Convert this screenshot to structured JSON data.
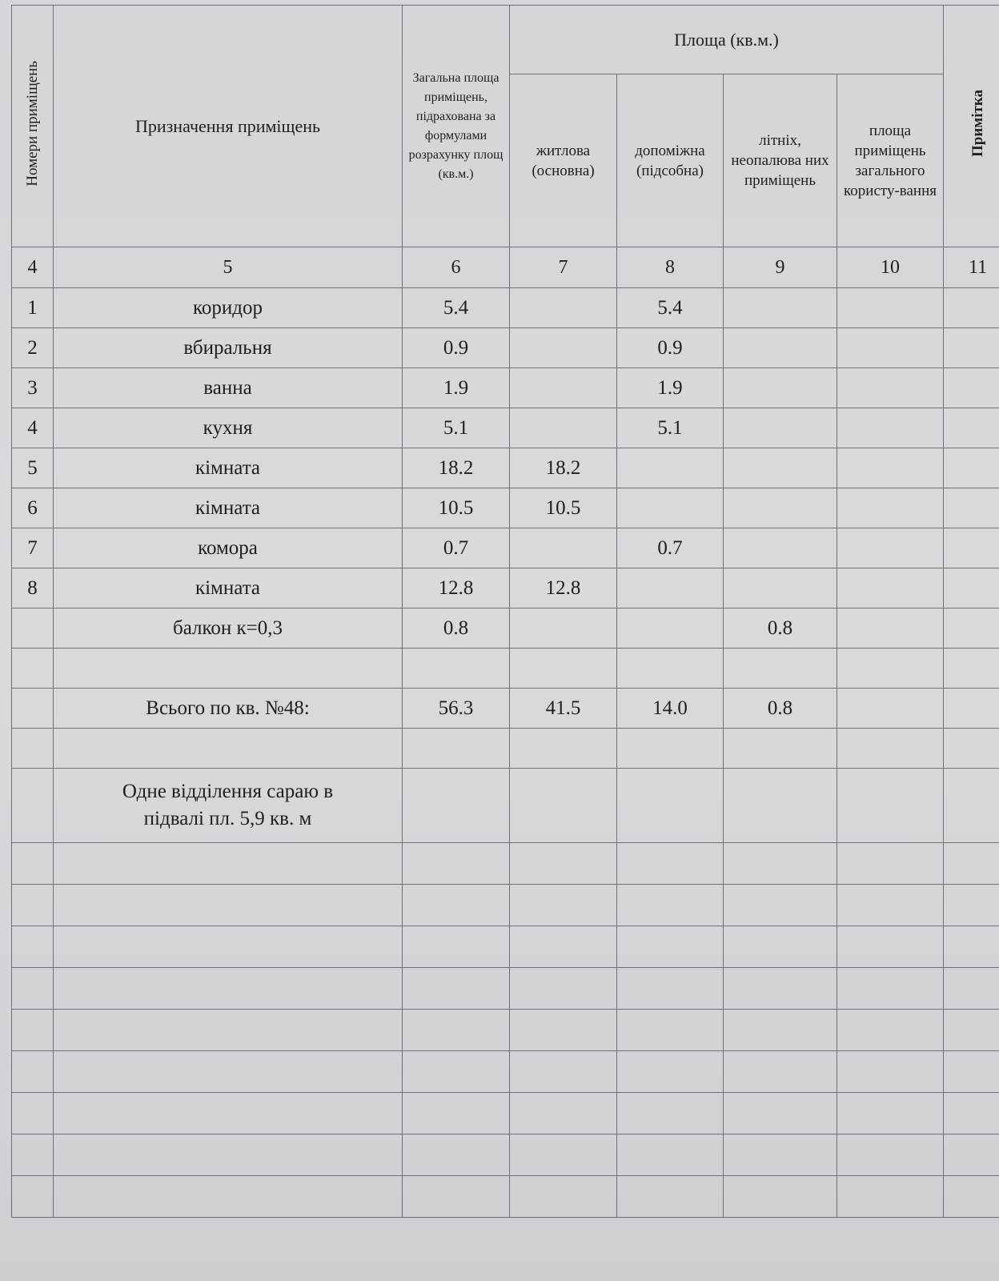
{
  "header": {
    "room_numbers": "Номери приміщень",
    "purpose": "Призначення приміщень",
    "total_area": "Загальна площа приміщень, підрахована за формулами розрахунку площ (кв.м.)",
    "area_group": "Площа (кв.м.)",
    "living": "житлова (основна)",
    "auxiliary": "допоміжна (підсобна)",
    "summer": "літніх, неопалюва них приміщень",
    "common": "площа приміщень загального користу-вання",
    "note": "Примітка"
  },
  "column_numbers": [
    "4",
    "5",
    "6",
    "7",
    "8",
    "9",
    "10",
    "11"
  ],
  "rows": [
    {
      "no": "1",
      "purpose": "коридор",
      "total": "5.4",
      "living": "",
      "aux": "5.4",
      "summer": "",
      "common": ""
    },
    {
      "no": "2",
      "purpose": "вбиральня",
      "total": "0.9",
      "living": "",
      "aux": "0.9",
      "summer": "",
      "common": ""
    },
    {
      "no": "3",
      "purpose": "ванна",
      "total": "1.9",
      "living": "",
      "aux": "1.9",
      "summer": "",
      "common": ""
    },
    {
      "no": "4",
      "purpose": "кухня",
      "total": "5.1",
      "living": "",
      "aux": "5.1",
      "summer": "",
      "common": ""
    },
    {
      "no": "5",
      "purpose": "кімната",
      "total": "18.2",
      "living": "18.2",
      "aux": "",
      "summer": "",
      "common": ""
    },
    {
      "no": "6",
      "purpose": "кімната",
      "total": "10.5",
      "living": "10.5",
      "aux": "",
      "summer": "",
      "common": ""
    },
    {
      "no": "7",
      "purpose": "комора",
      "total": "0.7",
      "living": "",
      "aux": "0.7",
      "summer": "",
      "common": ""
    },
    {
      "no": "8",
      "purpose": "кімната",
      "total": "12.8",
      "living": "12.8",
      "aux": "",
      "summer": "",
      "common": ""
    },
    {
      "no": "",
      "purpose": "балкон к=0,3",
      "total": "0.8",
      "living": "",
      "aux": "",
      "summer": "0.8",
      "common": ""
    }
  ],
  "total": {
    "label": "Всього по кв. №48:",
    "total": "56.3",
    "living": "41.5",
    "aux": "14.0",
    "summer": "0.8"
  },
  "note_text": "Одне відділення сараю в підвалі пл. 5,9 кв. м"
}
